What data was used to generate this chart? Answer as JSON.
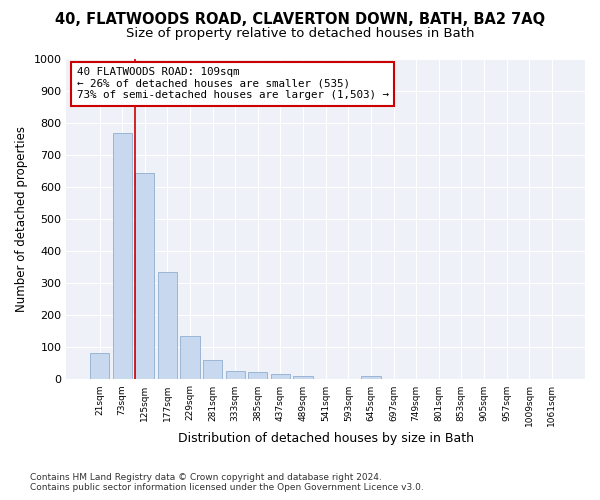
{
  "title": "40, FLATWOODS ROAD, CLAVERTON DOWN, BATH, BA2 7AQ",
  "subtitle": "Size of property relative to detached houses in Bath",
  "xlabel": "Distribution of detached houses by size in Bath",
  "ylabel": "Number of detached properties",
  "categories": [
    "21sqm",
    "73sqm",
    "125sqm",
    "177sqm",
    "229sqm",
    "281sqm",
    "333sqm",
    "385sqm",
    "437sqm",
    "489sqm",
    "541sqm",
    "593sqm",
    "645sqm",
    "697sqm",
    "749sqm",
    "801sqm",
    "853sqm",
    "905sqm",
    "957sqm",
    "1009sqm",
    "1061sqm"
  ],
  "values": [
    83,
    770,
    645,
    335,
    135,
    62,
    27,
    22,
    18,
    10,
    0,
    0,
    12,
    0,
    0,
    0,
    0,
    0,
    0,
    0,
    0
  ],
  "bar_color": "#c8d8ee",
  "bar_edgecolor": "#90aed0",
  "vline_color": "#cc0000",
  "annotation_text": "40 FLATWOODS ROAD: 109sqm\n← 26% of detached houses are smaller (535)\n73% of semi-detached houses are larger (1,503) →",
  "annotation_box_facecolor": "#ffffff",
  "annotation_box_edgecolor": "#cc0000",
  "ylim": [
    0,
    1000
  ],
  "yticks": [
    0,
    100,
    200,
    300,
    400,
    500,
    600,
    700,
    800,
    900,
    1000
  ],
  "footer": "Contains HM Land Registry data © Crown copyright and database right 2024.\nContains public sector information licensed under the Open Government Licence v3.0.",
  "bg_color": "#ffffff",
  "plot_bg_color": "#eef2f8",
  "grid_color": "#ffffff",
  "title_fontsize": 10.5,
  "subtitle_fontsize": 9.5
}
